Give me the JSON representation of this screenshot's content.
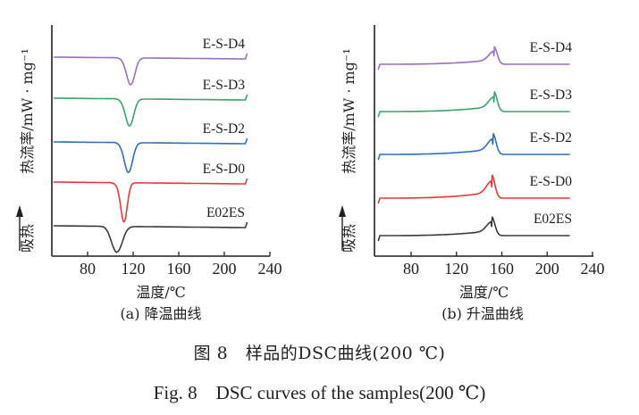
{
  "chart_data": [
    {
      "type": "line",
      "id": "cooling",
      "subtitle": "(a) 降温曲线",
      "xlabel": "温度/℃",
      "ylabel": "热流率/mW · mg⁻¹",
      "endo_label": "吸热",
      "xlim": [
        50,
        240
      ],
      "xticks": [
        80,
        120,
        160,
        200,
        240
      ],
      "grid": false,
      "legend": "inline-labels-right",
      "y_units": "arbitrary (stacked offsets)",
      "series": [
        {
          "name": "E-S-D4",
          "color": "#9a6fc0",
          "offset": 4,
          "peak_type": "exothermic dip",
          "peak_temp": 118,
          "peak_depth": 0.65,
          "width": 3.5
        },
        {
          "name": "E-S-D3",
          "color": "#3aa46a",
          "offset": 3,
          "peak_type": "exothermic dip",
          "peak_temp": 117,
          "peak_depth": 0.65,
          "width": 3.5
        },
        {
          "name": "E-S-D2",
          "color": "#2f6fbf",
          "offset": 2,
          "peak_type": "exothermic dip",
          "peak_temp": 116,
          "peak_depth": 0.72,
          "width": 3.5
        },
        {
          "name": "E-S-D0",
          "color": "#e23a3a",
          "offset": 1,
          "peak_type": "exothermic dip",
          "peak_temp": 112,
          "peak_depth": 0.95,
          "width": 2.8
        },
        {
          "name": "E02ES",
          "color": "#3b3b3b",
          "offset": 0,
          "peak_type": "exothermic dip",
          "peak_temp": 106,
          "peak_depth": 0.62,
          "width": 4.5
        }
      ],
      "x_range_data": [
        50,
        220
      ]
    },
    {
      "type": "line",
      "id": "heating",
      "subtitle": "(b) 升温曲线",
      "xlabel": "温度/℃",
      "ylabel": "热流率/mW · mg⁻¹",
      "endo_label": "吸热",
      "xlim": [
        50,
        240
      ],
      "xticks": [
        80,
        120,
        160,
        200,
        240
      ],
      "grid": false,
      "legend": "inline-labels-right",
      "y_units": "arbitrary (stacked offsets)",
      "series": [
        {
          "name": "E-S-D4",
          "color": "#9a6fc0",
          "offset": 4,
          "peak_type": "endothermic peak",
          "peak_temp": 153,
          "peak_height": 0.32
        },
        {
          "name": "E-S-D3",
          "color": "#3aa46a",
          "offset": 3,
          "peak_type": "endothermic peak",
          "peak_temp": 153,
          "peak_height": 0.36
        },
        {
          "name": "E-S-D2",
          "color": "#2f6fbf",
          "offset": 2,
          "peak_type": "endothermic peak",
          "peak_temp": 152,
          "peak_height": 0.38
        },
        {
          "name": "E-S-D0",
          "color": "#e23a3a",
          "offset": 1,
          "peak_type": "endothermic peak",
          "peak_temp": 151,
          "peak_height": 0.42
        },
        {
          "name": "E02ES",
          "color": "#3b3b3b",
          "offset": 0,
          "peak_type": "endothermic peak",
          "peak_temp": 151,
          "peak_height": 0.34
        }
      ],
      "x_range_data": [
        51,
        220
      ]
    }
  ],
  "captions": {
    "chinese": "图 8　样品的DSC曲线(200 ℃)",
    "english": "Fig. 8　DSC curves of the samples(200 ℃)"
  }
}
